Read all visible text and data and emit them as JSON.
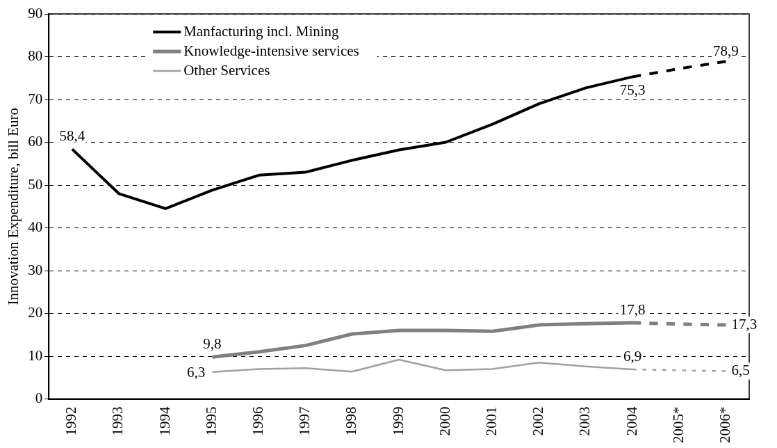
{
  "chart_data": {
    "type": "line",
    "ylabel": "Innovation Expenditure, bill Euro",
    "categories": [
      "1992",
      "1993",
      "1994",
      "1995",
      "1996",
      "1997",
      "1998",
      "1999",
      "2000",
      "2001",
      "2002",
      "2003",
      "2004",
      "2005*",
      "2006*"
    ],
    "series": [
      {
        "name": "Manfacturing incl. Mining",
        "color": "#000000",
        "values": [
          58.4,
          48,
          44.5,
          48.8,
          52.3,
          53,
          55.8,
          58.2,
          60,
          64.2,
          69,
          72.7,
          75.3,
          null,
          null
        ],
        "value_labels": [
          "58,4",
          null,
          null,
          null,
          null,
          null,
          null,
          null,
          null,
          null,
          null,
          null,
          "75,3",
          null,
          null
        ]
      },
      {
        "name": "Knowledge-intensive services",
        "color": "#808080",
        "values": [
          null,
          null,
          null,
          9.8,
          11,
          12.5,
          15.2,
          16,
          16,
          15.8,
          17.3,
          17.6,
          17.8,
          null,
          null
        ],
        "value_labels": [
          null,
          null,
          null,
          "9,8",
          null,
          null,
          null,
          null,
          null,
          null,
          null,
          null,
          "17,8",
          null,
          null
        ]
      },
      {
        "name": "Other Services",
        "color": "#a0a0a0",
        "values": [
          null,
          null,
          null,
          6.3,
          7,
          7.2,
          6.4,
          9.2,
          6.7,
          7,
          8.5,
          7.6,
          6.9,
          null,
          null
        ],
        "value_labels": [
          null,
          null,
          null,
          "6,3",
          null,
          null,
          null,
          null,
          null,
          null,
          null,
          null,
          "6,9",
          null,
          null
        ]
      },
      {
        "color": "#000000",
        "line_style": "dashed",
        "values": [
          null,
          null,
          null,
          null,
          null,
          null,
          null,
          null,
          null,
          null,
          null,
          null,
          75.3,
          77.2,
          78.9
        ],
        "value_labels": [
          null,
          null,
          null,
          null,
          null,
          null,
          null,
          null,
          null,
          null,
          null,
          null,
          null,
          null,
          "78,9"
        ]
      },
      {
        "color": "#808080",
        "line_style": "dashed",
        "values": [
          null,
          null,
          null,
          null,
          null,
          null,
          null,
          null,
          null,
          null,
          null,
          null,
          17.8,
          17.5,
          17.3
        ],
        "value_labels": [
          null,
          null,
          null,
          null,
          null,
          null,
          null,
          null,
          null,
          null,
          null,
          null,
          null,
          null,
          "17,3"
        ]
      },
      {
        "color": "#a0a0a0",
        "line_style": "dotted",
        "values": [
          null,
          null,
          null,
          null,
          null,
          null,
          null,
          null,
          null,
          null,
          null,
          null,
          6.9,
          6.7,
          6.5
        ],
        "value_labels": [
          null,
          null,
          null,
          null,
          null,
          null,
          null,
          null,
          null,
          null,
          null,
          null,
          null,
          null,
          "6,5"
        ]
      }
    ],
    "ylim": [
      0,
      90
    ],
    "yticks": [
      0,
      10,
      20,
      30,
      40,
      50,
      60,
      70,
      80,
      90
    ],
    "grid": "y",
    "legend": "top left",
    "marker": "none"
  }
}
